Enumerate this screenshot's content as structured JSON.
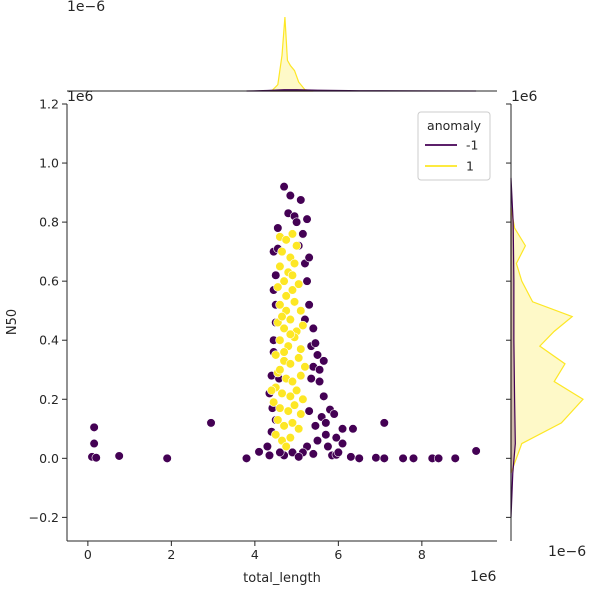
{
  "chart_data": {
    "type": "scatter",
    "subtype": "jointplot",
    "xlabel": "total_length",
    "ylabel": "N50",
    "x_offset_label": "1e6",
    "y_offset_label": "1e6",
    "top_marginal_offset_label": "1e−6",
    "right_marginal_offset_label": "1e−6",
    "right_marginal_top_label": "1e6",
    "xlim": [
      -0.5,
      9.8
    ],
    "ylim": [
      -0.28,
      1.2
    ],
    "xticks": [
      0,
      2,
      4,
      6,
      8
    ],
    "yticks": [
      -0.2,
      0.0,
      0.2,
      0.4,
      0.6,
      0.8,
      1.0,
      1.2
    ],
    "xtick_labels": [
      "0",
      "2",
      "4",
      "6",
      "8"
    ],
    "ytick_labels": [
      "−0.2",
      "0.0",
      "0.2",
      "0.4",
      "0.6",
      "0.8",
      "1.0",
      "1.2"
    ],
    "grid": false,
    "legend": {
      "title": "anomaly",
      "placement": "top-right",
      "entries": [
        {
          "label": "-1",
          "color": "#440154"
        },
        {
          "label": "1",
          "color": "#fde725"
        }
      ]
    },
    "series": [
      {
        "name": "-1",
        "color": "#440154",
        "points": [
          [
            0.1,
            0.005
          ],
          [
            0.15,
            0.105
          ],
          [
            0.15,
            0.05
          ],
          [
            0.2,
            0.002
          ],
          [
            0.75,
            0.008
          ],
          [
            1.9,
            0.0
          ],
          [
            2.95,
            0.12
          ],
          [
            3.8,
            0.0
          ],
          [
            4.1,
            0.022
          ],
          [
            4.35,
            0.01
          ],
          [
            4.7,
            0.92
          ],
          [
            4.85,
            0.89
          ],
          [
            5.1,
            0.875
          ],
          [
            4.8,
            0.83
          ],
          [
            4.95,
            0.82
          ],
          [
            5.0,
            0.8
          ],
          [
            5.25,
            0.81
          ],
          [
            4.55,
            0.78
          ],
          [
            4.6,
            0.75
          ],
          [
            5.15,
            0.76
          ],
          [
            4.45,
            0.7
          ],
          [
            5.05,
            0.72
          ],
          [
            5.2,
            0.66
          ],
          [
            4.5,
            0.62
          ],
          [
            5.25,
            0.6
          ],
          [
            4.45,
            0.57
          ],
          [
            5.3,
            0.52
          ],
          [
            5.2,
            0.47
          ],
          [
            4.5,
            0.46
          ],
          [
            5.4,
            0.44
          ],
          [
            5.35,
            0.38
          ],
          [
            4.45,
            0.36
          ],
          [
            5.5,
            0.35
          ],
          [
            5.4,
            0.31
          ],
          [
            5.35,
            0.27
          ],
          [
            5.65,
            0.33
          ],
          [
            5.55,
            0.26
          ],
          [
            5.65,
            0.21
          ],
          [
            5.8,
            0.165
          ],
          [
            5.6,
            0.14
          ],
          [
            5.9,
            0.15
          ],
          [
            6.1,
            0.1
          ],
          [
            6.35,
            0.1
          ],
          [
            6.1,
            0.05
          ],
          [
            5.7,
            0.08
          ],
          [
            7.1,
            0.12
          ],
          [
            6.3,
            0.005
          ],
          [
            6.5,
            0.0
          ],
          [
            6.9,
            0.002
          ],
          [
            7.1,
            0.0
          ],
          [
            7.55,
            0.0
          ],
          [
            7.8,
            0.0
          ],
          [
            8.25,
            0.0
          ],
          [
            8.4,
            0.0
          ],
          [
            8.8,
            0.0
          ],
          [
            9.3,
            0.025
          ],
          [
            4.4,
            0.09
          ],
          [
            4.3,
            0.04
          ],
          [
            4.35,
            0.22
          ],
          [
            4.4,
            0.28
          ],
          [
            4.5,
            0.13
          ],
          [
            5.3,
            0.16
          ],
          [
            5.45,
            0.11
          ],
          [
            5.5,
            0.06
          ],
          [
            5.25,
            0.04
          ],
          [
            5.15,
            0.02
          ],
          [
            4.9,
            0.02
          ],
          [
            4.7,
            0.01
          ],
          [
            4.6,
            0.02
          ],
          [
            5.05,
            0.005
          ],
          [
            5.85,
            0.01
          ],
          [
            5.95,
            0.012
          ],
          [
            4.55,
            0.71
          ],
          [
            4.5,
            0.52
          ],
          [
            5.3,
            0.68
          ],
          [
            4.45,
            0.4
          ],
          [
            5.45,
            0.39
          ],
          [
            5.55,
            0.3
          ],
          [
            4.42,
            0.17
          ],
          [
            5.7,
            0.12
          ],
          [
            5.95,
            0.07
          ],
          [
            6.0,
            0.02
          ],
          [
            5.4,
            0.015
          ],
          [
            5.75,
            0.04
          ],
          [
            4.58,
            0.27
          ]
        ]
      },
      {
        "name": "1",
        "color": "#fde725",
        "points": [
          [
            4.6,
            0.75
          ],
          [
            4.75,
            0.74
          ],
          [
            4.9,
            0.76
          ],
          [
            4.65,
            0.7
          ],
          [
            4.85,
            0.68
          ],
          [
            5.0,
            0.72
          ],
          [
            4.6,
            0.65
          ],
          [
            4.8,
            0.63
          ],
          [
            4.95,
            0.66
          ],
          [
            4.55,
            0.58
          ],
          [
            4.7,
            0.6
          ],
          [
            4.9,
            0.57
          ],
          [
            5.05,
            0.59
          ],
          [
            4.6,
            0.52
          ],
          [
            4.75,
            0.5
          ],
          [
            4.95,
            0.53
          ],
          [
            5.1,
            0.5
          ],
          [
            4.55,
            0.46
          ],
          [
            4.7,
            0.44
          ],
          [
            4.85,
            0.47
          ],
          [
            5.0,
            0.43
          ],
          [
            5.15,
            0.45
          ],
          [
            4.6,
            0.4
          ],
          [
            4.8,
            0.38
          ],
          [
            4.95,
            0.41
          ],
          [
            5.1,
            0.37
          ],
          [
            4.5,
            0.35
          ],
          [
            4.7,
            0.33
          ],
          [
            4.85,
            0.32
          ],
          [
            5.05,
            0.34
          ],
          [
            5.2,
            0.31
          ],
          [
            4.55,
            0.29
          ],
          [
            4.75,
            0.27
          ],
          [
            4.9,
            0.26
          ],
          [
            5.1,
            0.28
          ],
          [
            4.5,
            0.24
          ],
          [
            4.65,
            0.22
          ],
          [
            4.85,
            0.21
          ],
          [
            5.0,
            0.23
          ],
          [
            5.15,
            0.2
          ],
          [
            4.45,
            0.19
          ],
          [
            4.6,
            0.17
          ],
          [
            4.8,
            0.16
          ],
          [
            4.95,
            0.18
          ],
          [
            5.1,
            0.15
          ],
          [
            4.4,
            0.23
          ],
          [
            4.55,
            0.13
          ],
          [
            4.7,
            0.11
          ],
          [
            4.9,
            0.12
          ],
          [
            5.05,
            0.1
          ],
          [
            4.5,
            0.08
          ],
          [
            4.65,
            0.06
          ],
          [
            4.85,
            0.07
          ],
          [
            4.75,
            0.04
          ],
          [
            4.6,
            0.3
          ],
          [
            4.75,
            0.55
          ],
          [
            4.85,
            0.42
          ],
          [
            4.7,
            0.36
          ],
          [
            4.65,
            0.48
          ],
          [
            4.9,
            0.62
          ]
        ]
      }
    ],
    "marginal_top": {
      "type": "kde",
      "series": [
        {
          "name": "1",
          "x": [
            4.4,
            4.55,
            4.65,
            4.72,
            4.78,
            4.85,
            4.95,
            5.05,
            5.2,
            5.4
          ],
          "density": [
            0.0,
            0.25,
            1.4,
            2.9,
            1.2,
            1.0,
            0.8,
            0.35,
            0.05,
            0.0
          ]
        },
        {
          "name": "-1",
          "x": [
            3.8,
            4.3,
            4.7,
            5.0,
            5.5,
            6.5,
            8.0,
            9.3
          ],
          "density": [
            0.0,
            0.02,
            0.05,
            0.05,
            0.03,
            0.01,
            0.005,
            0.0
          ]
        }
      ]
    },
    "marginal_right": {
      "type": "kde",
      "series": [
        {
          "name": "1",
          "y": [
            -0.05,
            0.05,
            0.12,
            0.2,
            0.26,
            0.32,
            0.38,
            0.43,
            0.48,
            0.53,
            0.6,
            0.66,
            0.72,
            0.78,
            0.85
          ],
          "density": [
            0.0,
            0.3,
            1.4,
            2.0,
            1.2,
            1.5,
            0.8,
            1.2,
            1.7,
            0.6,
            0.3,
            0.15,
            0.4,
            0.1,
            0.0
          ]
        },
        {
          "name": "-1",
          "y": [
            -0.2,
            -0.05,
            0.05,
            0.2,
            0.4,
            0.6,
            0.8,
            0.95
          ],
          "density": [
            0.0,
            0.05,
            0.12,
            0.1,
            0.08,
            0.08,
            0.06,
            0.0
          ]
        }
      ]
    }
  }
}
